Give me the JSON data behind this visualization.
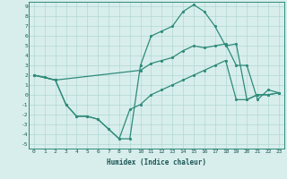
{
  "xlabel": "Humidex (Indice chaleur)",
  "xlim": [
    -0.5,
    23.5
  ],
  "ylim": [
    -5.5,
    9.5
  ],
  "xticks": [
    0,
    1,
    2,
    3,
    4,
    5,
    6,
    7,
    8,
    9,
    10,
    11,
    12,
    13,
    14,
    15,
    16,
    17,
    18,
    19,
    20,
    21,
    22,
    23
  ],
  "yticks": [
    -5,
    -4,
    -3,
    -2,
    -1,
    0,
    1,
    2,
    3,
    4,
    5,
    6,
    7,
    8,
    9
  ],
  "line_color": "#2e8b7a",
  "bg_color": "#d8eeec",
  "grid_color": "#b0d8d4",
  "line1_x": [
    0,
    1,
    2,
    3,
    4,
    5,
    6,
    7,
    8,
    9,
    10,
    11,
    12,
    13,
    14,
    15,
    16,
    17,
    18,
    19,
    20,
    21,
    22,
    23
  ],
  "line1_y": [
    2.0,
    1.8,
    1.5,
    -1.0,
    -2.2,
    -2.2,
    -2.5,
    -3.5,
    -4.5,
    -4.5,
    3.0,
    6.0,
    6.5,
    7.0,
    8.5,
    9.2,
    8.5,
    7.0,
    5.0,
    5.2,
    -0.5,
    0.0,
    0.0,
    0.2
  ],
  "line2_x": [
    0,
    2,
    10,
    11,
    12,
    13,
    14,
    15,
    16,
    17,
    18,
    19,
    20,
    21,
    22,
    23
  ],
  "line2_y": [
    2.0,
    1.5,
    2.5,
    3.2,
    3.5,
    3.8,
    4.5,
    5.0,
    4.8,
    5.0,
    5.2,
    3.0,
    3.0,
    -0.5,
    0.5,
    0.2
  ],
  "line3_x": [
    0,
    2,
    3,
    4,
    5,
    6,
    7,
    8,
    9,
    10,
    11,
    12,
    13,
    14,
    15,
    16,
    17,
    18,
    19,
    20,
    21,
    22,
    23
  ],
  "line3_y": [
    2.0,
    1.5,
    -1.0,
    -2.2,
    -2.2,
    -2.5,
    -3.5,
    -4.5,
    -1.5,
    -1.0,
    0.0,
    0.5,
    1.0,
    1.5,
    2.0,
    2.5,
    3.0,
    3.5,
    -0.5,
    -0.5,
    0.0,
    0.0,
    0.2
  ]
}
